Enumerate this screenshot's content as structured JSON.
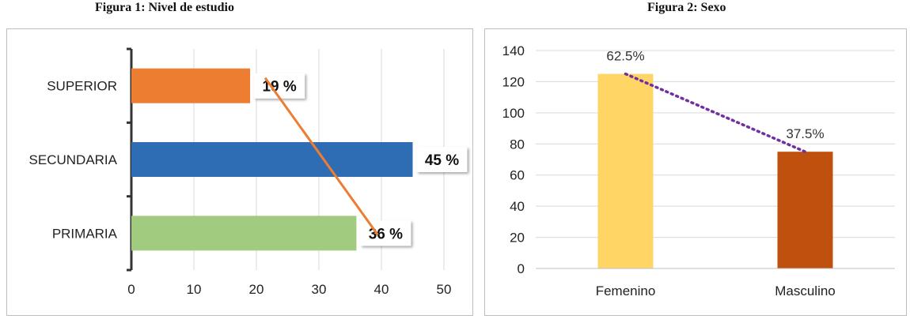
{
  "figures": [
    {
      "title": "Figura 1: Nivel de estudio"
    },
    {
      "title": "Figura 2:  Sexo"
    }
  ],
  "chart_data": [
    {
      "type": "bar",
      "orientation": "horizontal",
      "categories": [
        "SUPERIOR",
        "SECUNDARIA",
        "PRIMARIA"
      ],
      "values": [
        19,
        45,
        36
      ],
      "data_labels": [
        "19 %",
        "45 %",
        "36 %"
      ],
      "colors": [
        "#ed7d31",
        "#2e6db4",
        "#a1cc80"
      ],
      "xlim": [
        0,
        50
      ],
      "xticks": [
        "0",
        "10",
        "20",
        "30",
        "40",
        "50"
      ],
      "trendline": {
        "color": "#ed7d31",
        "style": "solid"
      },
      "grid": "vertical"
    },
    {
      "type": "bar",
      "categories": [
        "Femenino",
        "Masculino"
      ],
      "values": [
        125,
        75
      ],
      "data_labels": [
        "62.5%",
        "37.5%"
      ],
      "colors": [
        "#ffd666",
        "#c0500e"
      ],
      "ylim": [
        0,
        140
      ],
      "yticks": [
        "0",
        "20",
        "40",
        "60",
        "80",
        "100",
        "120",
        "140"
      ],
      "trendline": {
        "color": "#7030a0",
        "style": "dotted"
      },
      "grid": "horizontal"
    }
  ]
}
